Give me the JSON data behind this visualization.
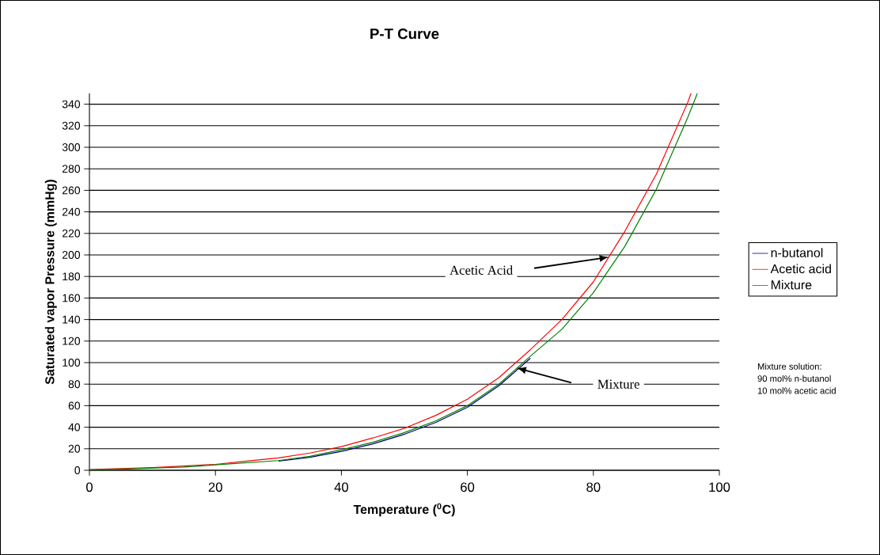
{
  "chart_data": {
    "type": "line",
    "title": "P-T Curve",
    "xlabel": "Temperature ($^{0}$C)",
    "ylabel": "Saturated vapor Pressure (mmHg)",
    "series": [
      {
        "name": "n-butanol",
        "color": "#000080",
        "x": [
          30,
          35,
          40,
          45,
          50,
          55,
          60,
          65,
          70
        ],
        "values": [
          8.5,
          12,
          17.5,
          24.5,
          33.5,
          44.5,
          58.5,
          78.5,
          104
        ]
      },
      {
        "name": "Acetic acid",
        "color": "#ff0000",
        "x": [
          0,
          5,
          10,
          15,
          20,
          25,
          30,
          35,
          40,
          45,
          50,
          55,
          60,
          65,
          70,
          75,
          80,
          85,
          90,
          95,
          95.5
        ],
        "values": [
          0.7,
          1.5,
          2.5,
          4,
          5.5,
          8.5,
          11.5,
          16,
          22,
          30,
          39,
          51,
          66,
          86,
          112,
          140,
          175,
          222,
          275,
          342,
          350
        ]
      },
      {
        "name": "Mixture",
        "color": "#008000",
        "x": [
          0,
          5,
          10,
          15,
          20,
          25,
          30,
          35,
          40,
          45,
          50,
          55,
          60,
          65,
          70,
          75,
          80,
          85,
          90,
          95,
          96.5
        ],
        "values": [
          0.5,
          1,
          2,
          3,
          5,
          7,
          9,
          13,
          19,
          26,
          35,
          46,
          60,
          80,
          106,
          131,
          165,
          208,
          261,
          328,
          350
        ]
      }
    ],
    "xlim": [
      0,
      100
    ],
    "xticks": [
      0,
      20,
      40,
      60,
      80,
      100
    ],
    "ylim": [
      0,
      350
    ],
    "yticks": [
      0,
      20,
      40,
      60,
      80,
      100,
      120,
      140,
      160,
      180,
      200,
      220,
      240,
      260,
      280,
      300,
      320,
      340
    ],
    "grid": "y",
    "legend": "right",
    "marker": "none",
    "line_style": "solid",
    "annotations": [
      "Acetic Acid",
      "Mixture",
      "Mixture solution:",
      "90 mol% n-butanol",
      "10 mol% acetic acid"
    ]
  }
}
